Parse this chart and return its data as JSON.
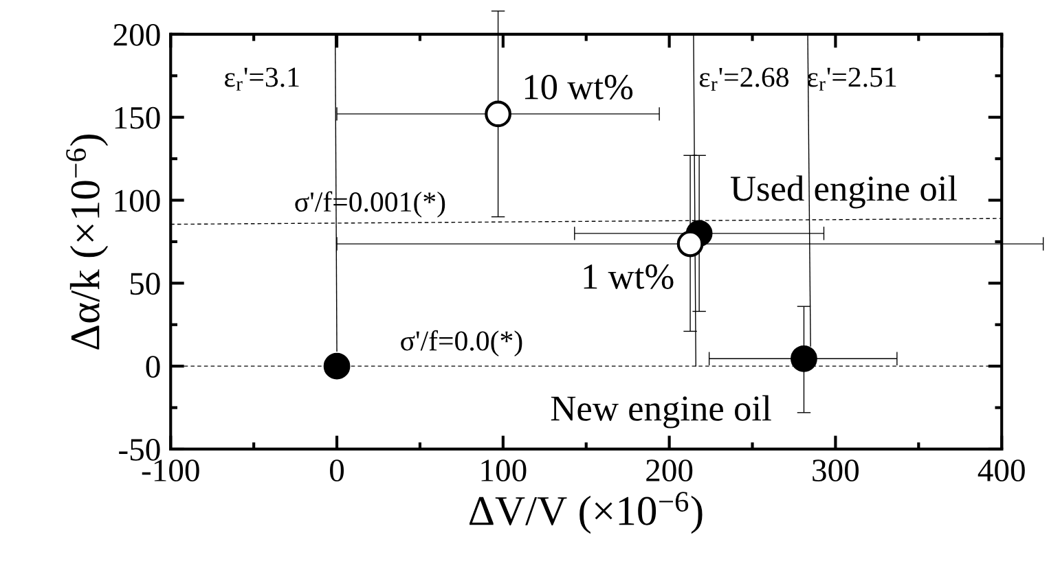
{
  "chart_data": {
    "type": "scatter",
    "xlabel": "ΔV/V (×10$^{−6}$)",
    "ylabel": "Δα/k (×10$^{−6}$)",
    "xlim": [
      -100,
      400
    ],
    "ylim": [
      -50,
      200
    ],
    "xticks": [
      -100,
      0,
      100,
      200,
      300,
      400
    ],
    "yticks": [
      -50,
      0,
      50,
      100,
      150,
      200
    ],
    "grid": false,
    "legend": false,
    "series": [
      {
        "type": "line",
        "color": "#000000",
        "line_style": "solid",
        "x": [
          0,
          -1
        ],
        "values": [
          9,
          200
        ]
      },
      {
        "type": "line",
        "color": "#000000",
        "line_style": "solid",
        "x": [
          216,
          214.6
        ],
        "values": [
          0,
          200
        ]
      },
      {
        "type": "line",
        "color": "#000000",
        "line_style": "solid",
        "x": [
          285,
          283.3
        ],
        "values": [
          12,
          200
        ]
      },
      {
        "type": "line",
        "color": "#000000",
        "line_style": "dashed",
        "x": [
          -100,
          400
        ],
        "values": [
          0,
          0
        ]
      },
      {
        "type": "line",
        "color": "#000000",
        "line_style": "dashed",
        "x": [
          -100,
          400
        ],
        "values": [
          85.5,
          89
        ]
      },
      {
        "color": "#000000",
        "marker": "circle",
        "x": [
          0,
          281,
          218
        ],
        "values": [
          0,
          4.5,
          80
        ],
        "errors": [
          null,
          [
            -28,
            36
          ],
          [
            33,
            127
          ]
        ],
        "xerrors": [
          null,
          [
            224,
            337
          ],
          [
            143,
            293
          ]
        ]
      },
      {
        "color": "#000000",
        "colors": [
          "#ffffff",
          "#ffffff"
        ],
        "marker": "circle",
        "x": [
          97,
          212.6
        ],
        "values": [
          152,
          73.7
        ],
        "errors": [
          [
            90,
            214
          ],
          [
            21,
            127
          ]
        ],
        "xerrors": [
          [
            0,
            194
          ],
          [
            0,
            425
          ]
        ]
      }
    ],
    "annotations": [
      "ε$_{r}$'=3.1",
      "ε$_{r}$'=2.68",
      "ε$_{r}$'=2.51",
      "10 wt%",
      "Used engine oil",
      "σ'/f=0.001(*)",
      "1 wt%",
      "σ'/f=0.0(*)",
      "New engine oil"
    ]
  }
}
